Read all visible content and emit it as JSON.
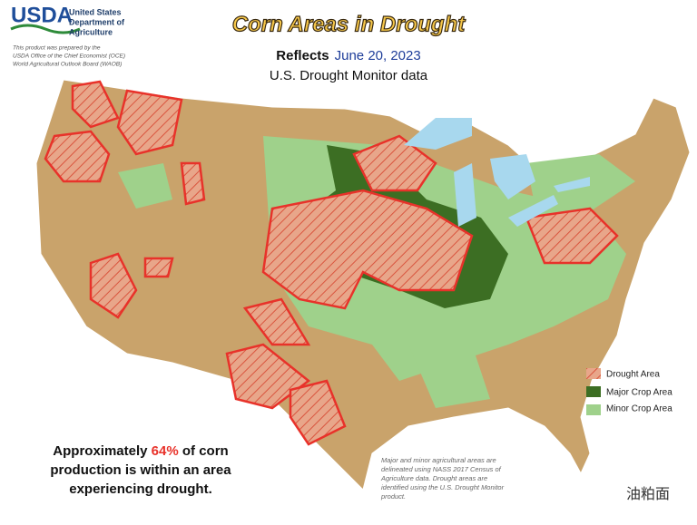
{
  "header": {
    "logo": "USDA",
    "agency": [
      "United States",
      "Department of",
      "Agriculture"
    ],
    "credit": [
      "This product was prepared by the",
      "USDA Office of the Chief Economist (OCE)",
      "World Agricultural Outlook Board (WAOB)"
    ]
  },
  "title": "Corn Areas in Drought",
  "subtitle": {
    "prefix": "Reflects",
    "date": "June 20, 2023",
    "source": "U.S. Drought Monitor data"
  },
  "legend": [
    "Drought Area",
    "Major Crop Area",
    "Minor Crop Area"
  ],
  "summary": {
    "lines": [
      [
        "Approximately ",
        "64%",
        " of corn"
      ],
      [
        "production is within an area"
      ],
      [
        "experiencing drought."
      ]
    ]
  },
  "note": [
    "Major and minor agricultural areas are",
    "delineated using NASS 2017 Census of",
    "Agriculture data.  Drought areas are",
    "identified using the U.S. Drought Monitor",
    "product."
  ],
  "watermark": "油粕面"
}
